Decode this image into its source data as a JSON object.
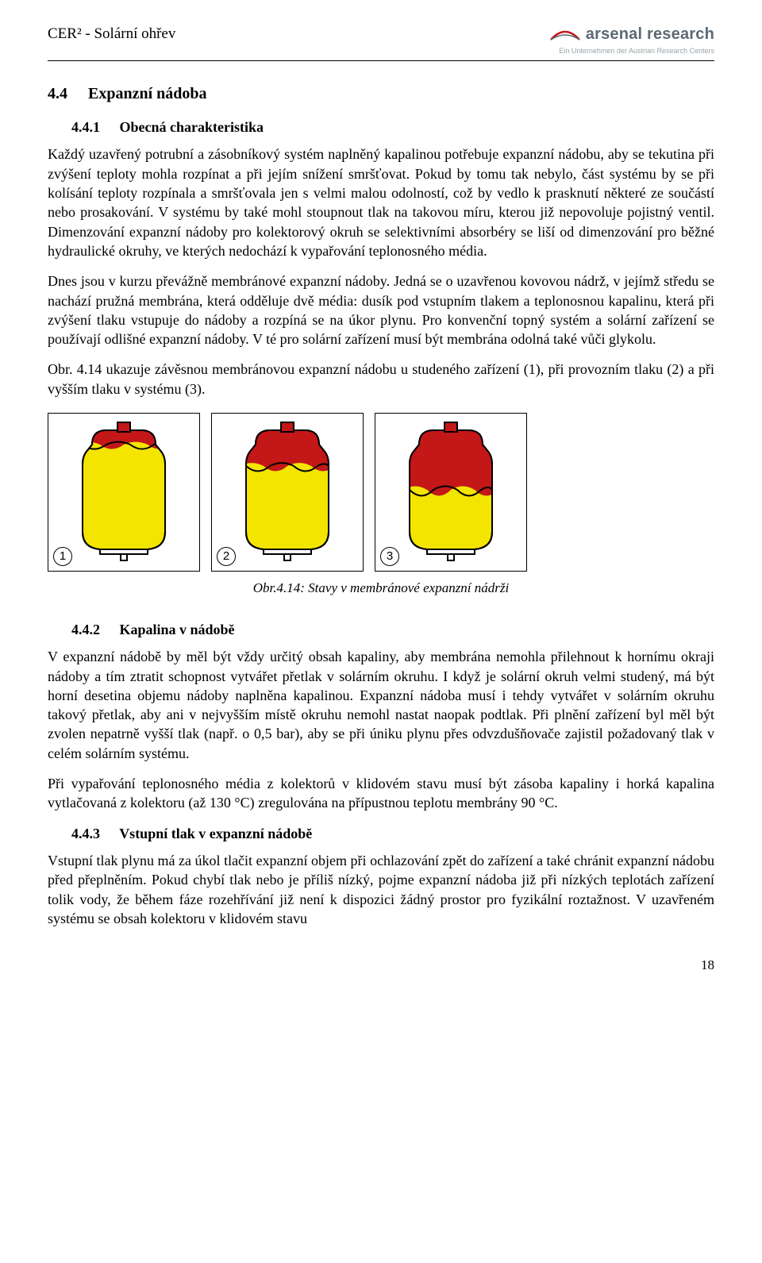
{
  "header": {
    "left": "CER² - Solární ohřev",
    "brand": "arsenal research",
    "brand_sub": "Ein Unternehmen der Austrian Research Centers"
  },
  "sec_4_4": {
    "num": "4.4",
    "title": "Expanzní nádoba"
  },
  "sec_4_4_1": {
    "num": "4.4.1",
    "title": "Obecná charakteristika",
    "p1": "Každý uzavřený potrubní a zásobníkový systém naplněný kapalinou potřebuje expanzní nádobu, aby se tekutina při zvýšení teploty mohla rozpínat a při jejím snížení smršťovat. Pokud by tomu tak nebylo, část systému by se při kolísání teploty rozpínala a smršťovala jen s velmi malou odolností, což by vedlo k prasknutí některé ze součástí nebo prosakování. V systému by také mohl stoupnout tlak na takovou míru, kterou již nepovoluje pojistný ventil. Dimenzování expanzní nádoby pro kolektorový okruh se selektivními absorbéry se liší od dimenzování pro běžné hydraulické okruhy, ve kterých nedochází k vypařování teplonosného média.",
    "p2": "Dnes jsou v kurzu převážně membránové expanzní nádoby. Jedná se o uzavřenou kovovou nádrž, v jejímž středu se nachází pružná membrána, která odděluje dvě média: dusík pod vstupním tlakem a teplonosnou kapalinu, která při zvýšení tlaku vstupuje do nádoby a rozpíná se na úkor plynu. Pro konvenční topný systém a solární zařízení se používají odlišné expanzní nádoby. V té pro solární zařízení musí být membrána odolná také vůči glykolu.",
    "p3": "Obr. 4.14 ukazuje závěsnou membránovou expanzní nádobu u studeného zařízení (1), při provozním tlaku (2) a při vyšším tlaku v systému (3)."
  },
  "figure": {
    "caption": "Obr.4.14: Stavy v  membránové expanzní nádrži",
    "labels": [
      "1",
      "2",
      "3"
    ],
    "colors": {
      "body": "#f3e500",
      "fluid": "#c31718",
      "stroke": "#000000",
      "bg": "#ffffff"
    },
    "fill_level": [
      0.12,
      0.3,
      0.5
    ]
  },
  "sec_4_4_2": {
    "num": "4.4.2",
    "title": "Kapalina v nádobě",
    "p1": "V expanzní nádobě by měl být vždy určitý obsah kapaliny, aby membrána nemohla přilehnout k hornímu okraji nádoby a tím ztratit schopnost vytvářet přetlak v solárním okruhu. I když je solární okruh velmi studený, má být horní desetina objemu nádoby naplněna kapalinou. Expanzní nádoba musí i tehdy vytvářet v solárním okruhu takový přetlak, aby ani v nejvyšším místě okruhu nemohl nastat naopak podtlak. Při plnění zařízení byl měl být zvolen nepatrně vyšší tlak (např. o 0,5 bar), aby se při úniku plynu přes odvzdušňovače zajistil požadovaný tlak v celém solárním systému.",
    "p2": "Při vypařování teplonosného média z kolektorů v klidovém stavu musí být zásoba kapaliny i horká kapalina vytlačovaná z kolektoru (až 130 °C) zregulována na přípustnou teplotu membrány 90 °C."
  },
  "sec_4_4_3": {
    "num": "4.4.3",
    "title": "Vstupní tlak v expanzní nádobě",
    "p1": "Vstupní tlak plynu má za úkol tlačit expanzní objem při ochlazování zpět do zařízení a také chránit expanzní nádobu před přeplněním. Pokud chybí tlak nebo je příliš nízký, pojme expanzní nádoba již při nízkých teplotách zařízení tolik vody, že během fáze rozehřívání již není k dispozici žádný prostor pro fyzikální roztažnost. V uzavřeném systému se obsah kolektoru v klidovém stavu"
  },
  "page_number": "18"
}
